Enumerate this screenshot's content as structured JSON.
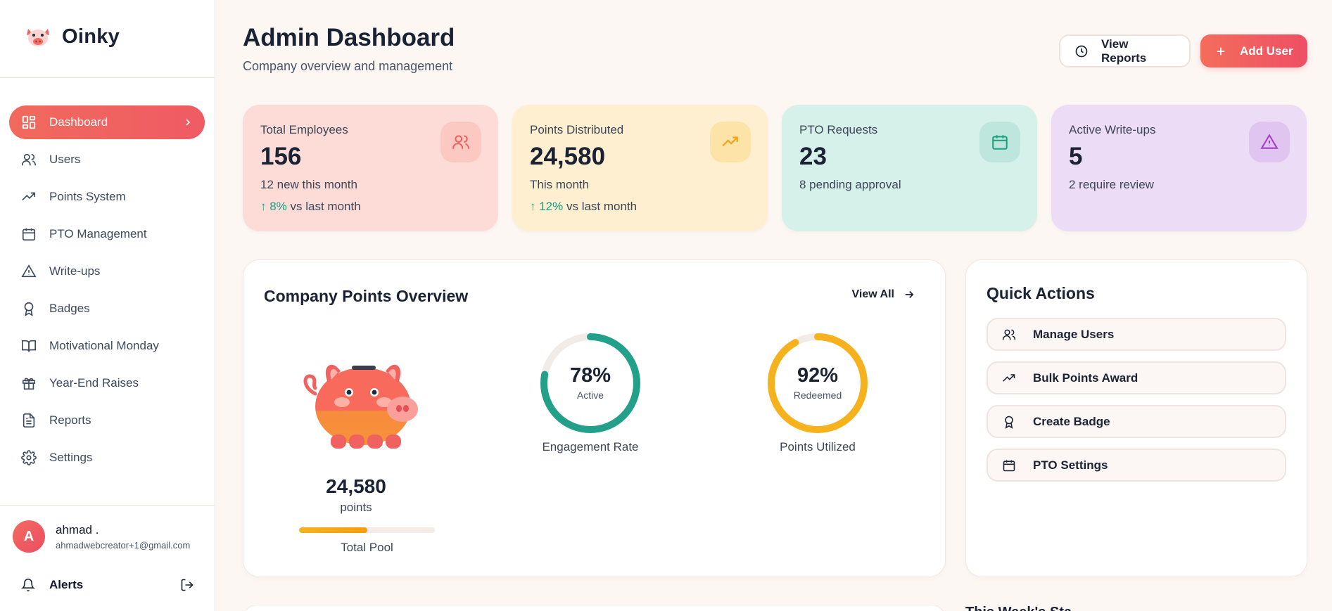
{
  "brand": {
    "name": "Oinky"
  },
  "sidebar": {
    "items": [
      {
        "label": "Dashboard",
        "icon": "dashboard-icon",
        "active": true
      },
      {
        "label": "Users",
        "icon": "users-icon"
      },
      {
        "label": "Points System",
        "icon": "trending-up-icon"
      },
      {
        "label": "PTO Management",
        "icon": "calendar-icon"
      },
      {
        "label": "Write-ups",
        "icon": "alert-triangle-icon"
      },
      {
        "label": "Badges",
        "icon": "award-icon"
      },
      {
        "label": "Motivational Monday",
        "icon": "book-open-icon"
      },
      {
        "label": "Year-End Raises",
        "icon": "gift-icon"
      },
      {
        "label": "Reports",
        "icon": "file-text-icon"
      },
      {
        "label": "Settings",
        "icon": "gear-icon"
      }
    ],
    "user": {
      "initial": "A",
      "name": "ahmad .",
      "email": "ahmadwebcreator+1@gmail.com"
    },
    "alerts_label": "Alerts"
  },
  "header": {
    "title": "Admin Dashboard",
    "subtitle": "Company overview and management",
    "view_reports_label": "View Reports",
    "add_user_label": "Add User"
  },
  "stats": [
    {
      "label": "Total Employees",
      "value": "156",
      "sub": "12 new this month",
      "trend_value": "↑ 8%",
      "trend_text": " vs last month",
      "bg": "#fddcd8",
      "icon_bg": "#fbc9c2",
      "icon_color": "#ef5f5a",
      "icon": "users-icon"
    },
    {
      "label": "Points Distributed",
      "value": "24,580",
      "sub": "This month",
      "trend_value": "↑ 12%",
      "trend_text": " vs last month",
      "bg": "#fdefd0",
      "icon_bg": "#fde3a8",
      "icon_color": "#f0a418",
      "icon": "trending-up-icon"
    },
    {
      "label": "PTO Requests",
      "value": "23",
      "sub": "8 pending approval",
      "bg": "#d6f0ea",
      "icon_bg": "#bfe6dc",
      "icon_color": "#1fa184",
      "icon": "calendar-icon"
    },
    {
      "label": "Active Write-ups",
      "value": "5",
      "sub": "2 require review",
      "bg": "#ecdcf6",
      "icon_bg": "#dfc5f0",
      "icon_color": "#a43ec9",
      "icon": "alert-triangle-icon"
    }
  ],
  "overview": {
    "title": "Company Points Overview",
    "view_all_label": "View All",
    "pool_value": "24,580",
    "pool_unit": "points",
    "pool_label": "Total Pool",
    "pool_fill": 0.5,
    "rings": [
      {
        "value": "78%",
        "sub": "Active",
        "label": "Engagement Rate",
        "fraction": 0.78,
        "color": "#22a08a"
      },
      {
        "value": "92%",
        "sub": "Redeemed",
        "label": "Points Utilized",
        "fraction": 0.92,
        "color": "#f5b21c"
      }
    ]
  },
  "quick_actions": {
    "title": "Quick Actions",
    "items": [
      {
        "label": "Manage Users",
        "icon": "users-icon"
      },
      {
        "label": "Bulk Points Award",
        "icon": "trending-up-icon"
      },
      {
        "label": "Create Badge",
        "icon": "award-icon"
      },
      {
        "label": "PTO Settings",
        "icon": "calendar-icon"
      }
    ]
  },
  "bottom": {
    "partial_title": "This Week's Sta..."
  },
  "colors": {
    "accent": "#f2685e",
    "teal": "#22a08a",
    "amber": "#f5b21c"
  }
}
